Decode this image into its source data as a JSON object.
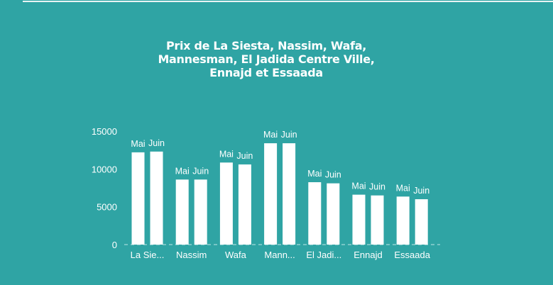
{
  "chart_data": {
    "type": "bar",
    "title": "Prix de La Siesta, Nassim, Wafa, Mannesman, El Jadida Centre Ville, Ennajd et Essaada",
    "title_lines": [
      "Prix de La Siesta, Nassim, Wafa,",
      "Mannesman, El Jadida Centre Ville,",
      "Ennajd et Essaada"
    ],
    "categories": [
      "La Sie...",
      "Nassim",
      "Wafa",
      "Mann...",
      "El Jadi...",
      "Ennajd",
      "Essaada"
    ],
    "series": [
      {
        "name": "Mai",
        "values": [
          12200,
          8600,
          10850,
          13400,
          8250,
          6600,
          6350
        ]
      },
      {
        "name": "Juin",
        "values": [
          12300,
          8600,
          10600,
          13400,
          8100,
          6500,
          6000
        ]
      }
    ],
    "data_labels": "series name above each bar",
    "yticks": [
      0,
      5000,
      10000,
      15000
    ],
    "ylim": [
      0,
      15000
    ],
    "xlabel": "",
    "ylabel": "",
    "grid": false,
    "legend": "none",
    "colors": {
      "background": "#2fa4a4",
      "bars": "#ffffff",
      "baseline": "#8fd0d0"
    }
  }
}
